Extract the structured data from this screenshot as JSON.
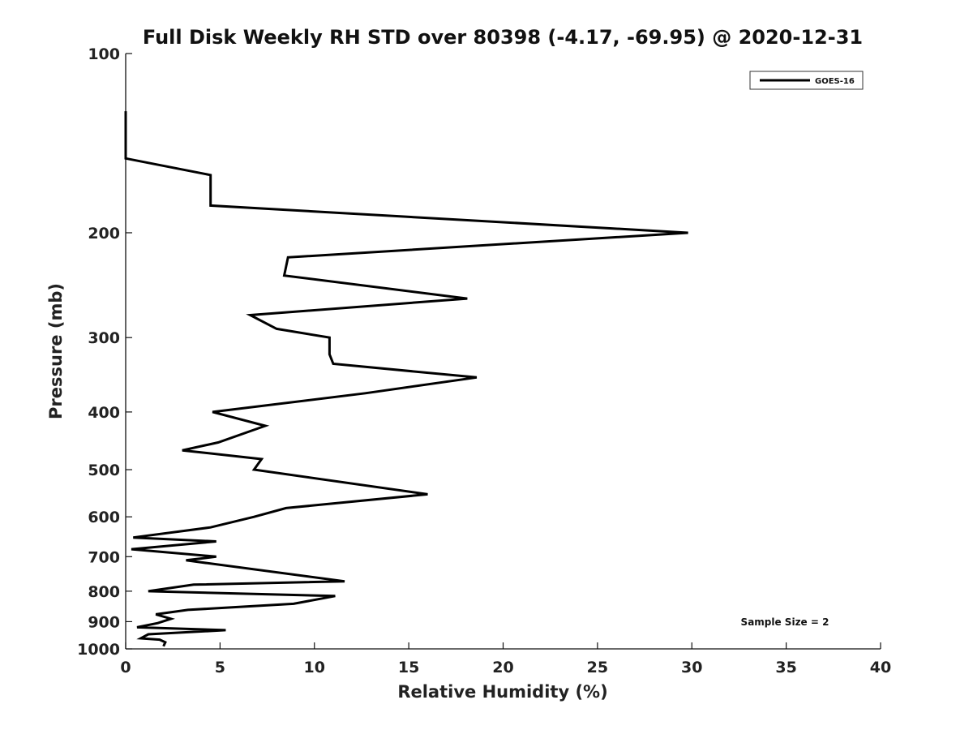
{
  "chart_data": {
    "type": "line",
    "title": "Full Disk Weekly RH STD over 80398 (-4.17, -69.95) @ 2020-12-31",
    "xlabel": "Relative Humidity (%)",
    "ylabel": "Pressure (mb)",
    "xlim": [
      0,
      40
    ],
    "ylim": [
      100,
      1000
    ],
    "y_scale": "log",
    "y_inverted": true,
    "x_ticks": [
      0,
      5,
      10,
      15,
      20,
      25,
      30,
      35,
      40
    ],
    "y_ticks": [
      100,
      200,
      300,
      400,
      500,
      600,
      700,
      800,
      900,
      1000
    ],
    "legend": {
      "entries": [
        "GOES-16"
      ],
      "location": "top-right"
    },
    "annotation": "Sample Size = 2",
    "series": [
      {
        "name": "GOES-16",
        "color": "#000000",
        "points": [
          [
            0.0,
            125
          ],
          [
            0.0,
            150
          ],
          [
            4.5,
            160
          ],
          [
            4.5,
            180
          ],
          [
            29.8,
            200
          ],
          [
            8.6,
            220
          ],
          [
            8.4,
            236
          ],
          [
            18.1,
            258
          ],
          [
            6.6,
            275
          ],
          [
            8.0,
            290
          ],
          [
            10.8,
            300
          ],
          [
            10.8,
            320
          ],
          [
            11.0,
            332
          ],
          [
            18.6,
            350
          ],
          [
            12.7,
            372
          ],
          [
            4.6,
            400
          ],
          [
            7.4,
            422
          ],
          [
            4.9,
            450
          ],
          [
            3.0,
            464
          ],
          [
            7.2,
            480
          ],
          [
            6.8,
            500
          ],
          [
            16.0,
            550
          ],
          [
            8.5,
            580
          ],
          [
            6.8,
            600
          ],
          [
            4.5,
            625
          ],
          [
            0.4,
            650
          ],
          [
            4.8,
            660
          ],
          [
            0.3,
            680
          ],
          [
            4.8,
            700
          ],
          [
            3.2,
            710
          ],
          [
            11.6,
            770
          ],
          [
            3.6,
            780
          ],
          [
            1.2,
            800
          ],
          [
            11.1,
            815
          ],
          [
            8.9,
            840
          ],
          [
            3.3,
            860
          ],
          [
            1.6,
            875
          ],
          [
            2.4,
            890
          ],
          [
            1.7,
            905
          ],
          [
            0.6,
            920
          ],
          [
            5.3,
            930
          ],
          [
            1.2,
            945
          ],
          [
            0.8,
            960
          ],
          [
            1.8,
            965
          ],
          [
            2.1,
            975
          ],
          [
            2.0,
            990
          ]
        ]
      }
    ]
  }
}
